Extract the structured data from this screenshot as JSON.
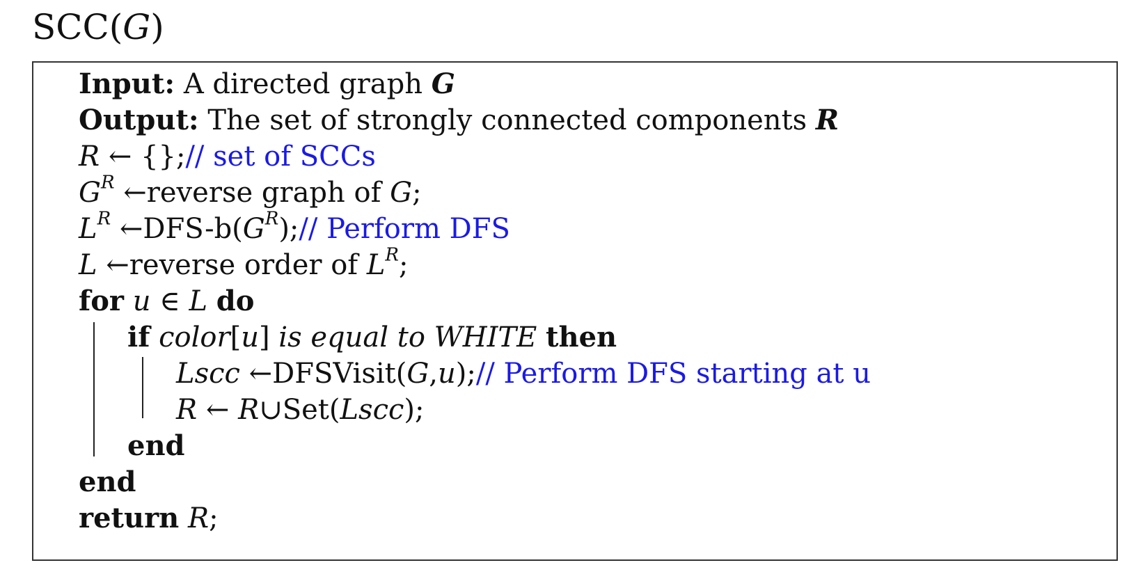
{
  "title": {
    "main": "SCC(",
    "var": "G",
    "close": ")"
  },
  "algorithm": {
    "input": {
      "label": "Input:",
      "text": "A directed graph",
      "var": "G"
    },
    "output": {
      "label": "Output:",
      "text": "The set of strongly connected components",
      "var": "R"
    },
    "line3": {
      "var": "R",
      "op": " ← {};",
      "comment": "// set of SCCs"
    },
    "line4": {
      "var": "G",
      "sup": "R",
      "op": " ←reverse graph of ",
      "var2": "G",
      "end": ";"
    },
    "line5": {
      "var": "L",
      "sup": "R",
      "op": " ←DFS-b(",
      "var2": "G",
      "sup2": "R",
      "end": ");",
      "comment": "// Perform DFS"
    },
    "line6": {
      "var": "L",
      "op": " ←reverse order of ",
      "var2": "L",
      "sup2": "R",
      "end": ";"
    },
    "line7": {
      "kw_for": "for",
      "var": "u",
      "op": " ∈ ",
      "var2": "L",
      "kw_do": "do"
    },
    "line8": {
      "kw_if": "if",
      "cond": "color",
      "bracket_open": "[",
      "cond_var": "u",
      "bracket_close": "]",
      "cond_rest": " is equal to WHITE",
      "kw_then": "then"
    },
    "line9": {
      "var": "Lscc",
      "op": " ←DFSVisit(",
      "arg1": "G",
      "comma": ",",
      "arg2": "u",
      "end": ");",
      "comment": "// Perform DFS starting at u"
    },
    "line10": {
      "var": "R",
      "op": " ← ",
      "var2": "R",
      "op2": "∪Set(",
      "arg": "Lscc",
      "end": ");"
    },
    "line11": {
      "kw": "end"
    },
    "line12": {
      "kw": "end"
    },
    "line13": {
      "kw": "return",
      "var": "R",
      "end": ";"
    }
  }
}
